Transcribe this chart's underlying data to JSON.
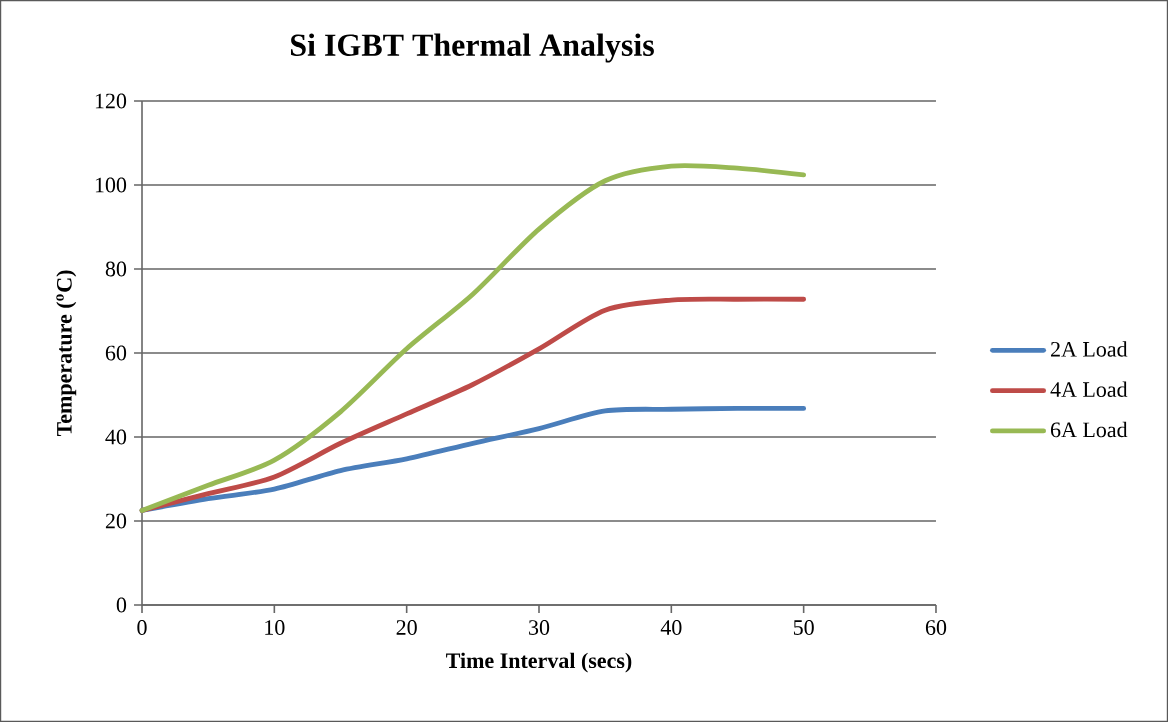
{
  "chart_data": {
    "type": "line",
    "title": "Si IGBT Thermal Analysis",
    "xlabel": "Time Interval (secs)",
    "ylabel": "Temperature ($^{o}$C)",
    "x": [
      0,
      5,
      10,
      15,
      20,
      25,
      30,
      35,
      40,
      45,
      50
    ],
    "series": [
      {
        "name": "2A Load",
        "color": "#4a7ebb",
        "values": [
          22.5,
          25.3,
          27.6,
          32.0,
          34.8,
          38.5,
          42.0,
          46.2,
          46.6,
          46.8,
          46.8
        ]
      },
      {
        "name": "4A Load",
        "color": "#be4b48",
        "values": [
          22.5,
          26.5,
          30.5,
          38.5,
          45.5,
          52.5,
          61.0,
          70.2,
          72.6,
          72.8,
          72.8
        ]
      },
      {
        "name": "6A Load",
        "color": "#98b954",
        "values": [
          22.5,
          28.5,
          34.5,
          46.0,
          61.0,
          74.0,
          89.5,
          101.0,
          104.5,
          104.0,
          102.4
        ]
      }
    ],
    "xlim": [
      0,
      60
    ],
    "ylim": [
      0,
      120
    ],
    "xticks": [
      0,
      10,
      20,
      30,
      40,
      50,
      60
    ],
    "yticks": [
      0,
      20,
      40,
      60,
      80,
      100,
      120
    ],
    "grid": "y",
    "legend": "right"
  }
}
